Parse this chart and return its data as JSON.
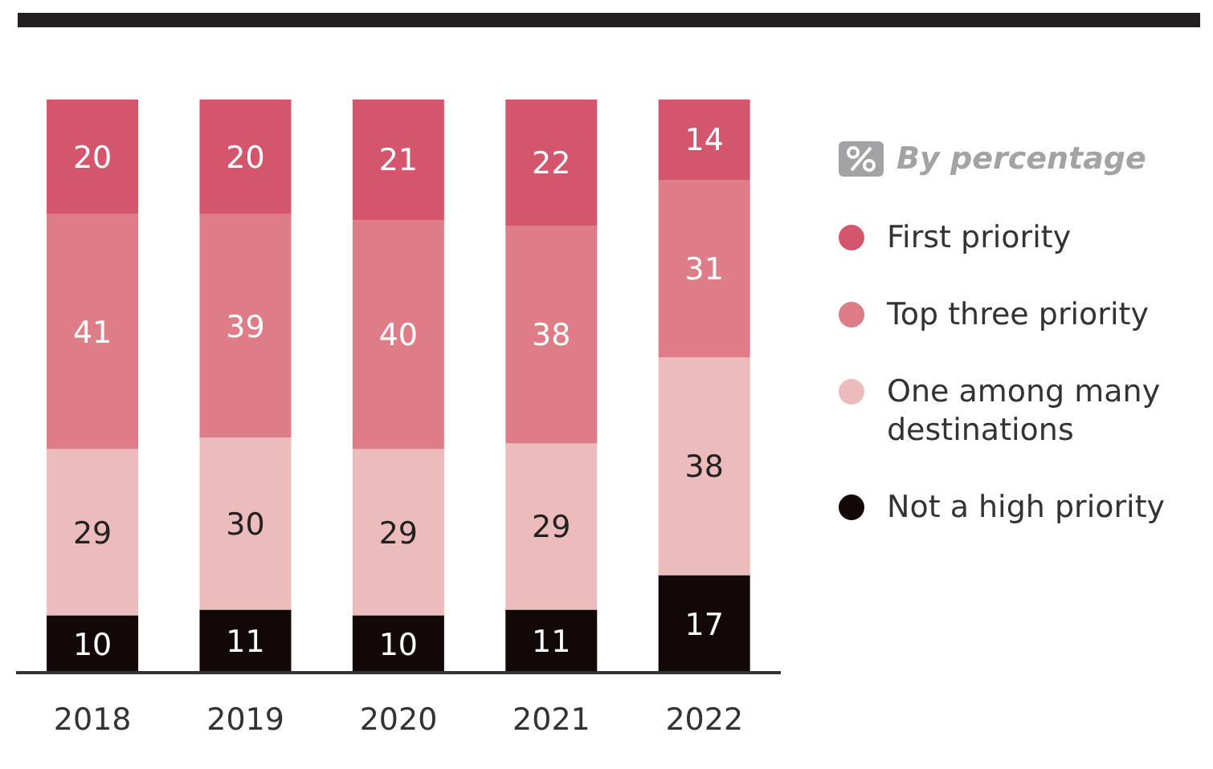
{
  "chart_data": {
    "type": "bar",
    "stacked": true,
    "categories": [
      "2018",
      "2019",
      "2020",
      "2021",
      "2022"
    ],
    "series": [
      {
        "name": "Not a high priority",
        "color": "#120808",
        "values": [
          10,
          11,
          10,
          11,
          17
        ]
      },
      {
        "name": "One among many destinations",
        "color": "#ecbcbd",
        "values": [
          29,
          30,
          29,
          29,
          38
        ]
      },
      {
        "name": "Top three priority",
        "color": "#de7d87",
        "values": [
          41,
          39,
          40,
          38,
          31
        ]
      },
      {
        "name": "First priority",
        "color": "#d4566d",
        "values": [
          20,
          20,
          21,
          22,
          14
        ]
      }
    ],
    "data_labels": true,
    "legend": "right",
    "legend_title": "By percentage",
    "grid": false
  }
}
